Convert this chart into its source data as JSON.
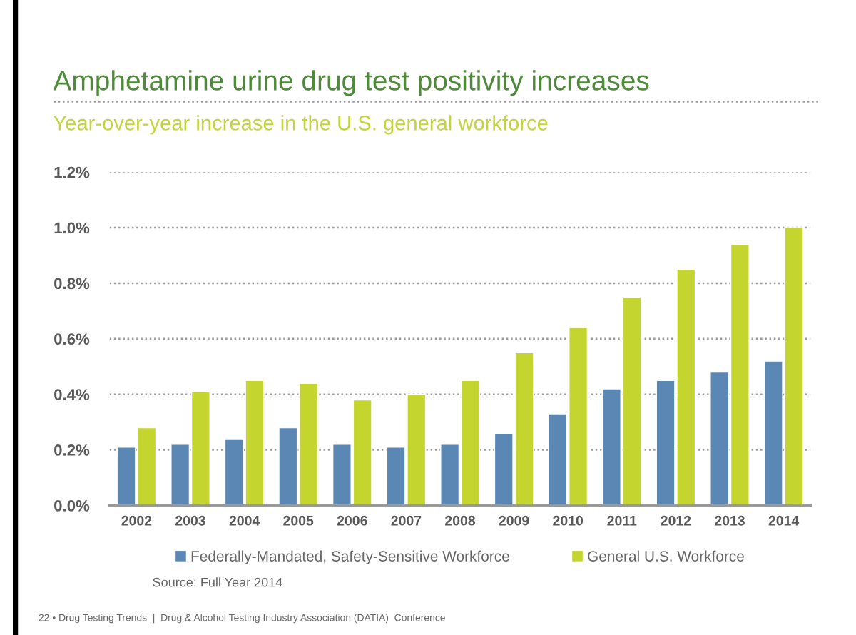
{
  "chart_data": {
    "type": "bar",
    "title": "Amphetamine urine drug test positivity increases",
    "subtitle": "Year-over-year increase in the U.S. general workforce",
    "categories": [
      "2002",
      "2003",
      "2004",
      "2005",
      "2006",
      "2007",
      "2008",
      "2009",
      "2010",
      "2011",
      "2012",
      "2013",
      "2014"
    ],
    "series": [
      {
        "name": "Federally-Mandated, Safety-Sensitive Workforce",
        "color": "#5b87b4",
        "values": [
          0.21,
          0.22,
          0.24,
          0.28,
          0.22,
          0.21,
          0.22,
          0.26,
          0.33,
          0.42,
          0.45,
          0.48,
          0.52
        ]
      },
      {
        "name": "General U.S. Workforce",
        "color": "#c5d52f",
        "values": [
          0.28,
          0.41,
          0.45,
          0.44,
          0.38,
          0.4,
          0.45,
          0.55,
          0.64,
          0.75,
          0.85,
          0.94,
          1.0
        ]
      }
    ],
    "ylim": [
      0,
      1.2
    ],
    "yticks": [
      {
        "value": 0,
        "label": "0.0%"
      },
      {
        "value": 0.2,
        "label": "0.2%"
      },
      {
        "value": 0.4,
        "label": "0.4%"
      },
      {
        "value": 0.6,
        "label": "0.6%"
      },
      {
        "value": 0.8,
        "label": "0.8%"
      },
      {
        "value": 1.0,
        "label": "1.0%"
      },
      {
        "value": 1.2,
        "label": "1.2%"
      }
    ],
    "grid": "y",
    "legend": "bottom",
    "annotations": [
      "Source: Full Year 2014",
      "22 • Drug Testing Trends  |  Drug & Alcohol Testing Industry Association (DATIA)  Conference"
    ]
  }
}
